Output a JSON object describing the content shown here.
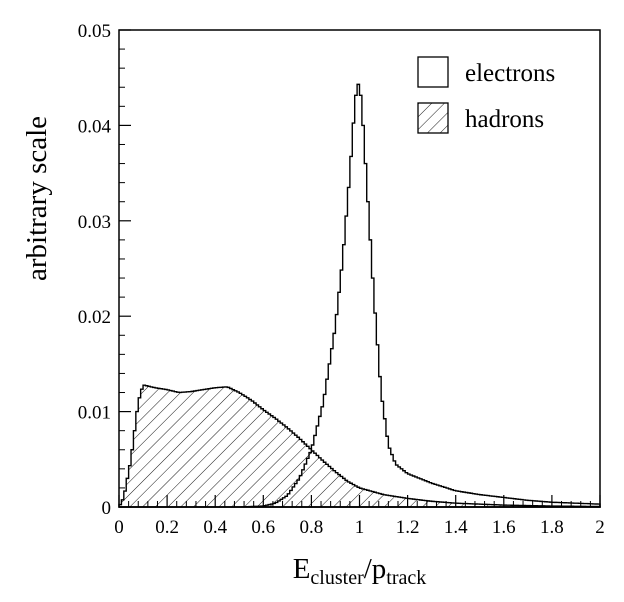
{
  "chart_data": {
    "type": "histogram",
    "xlabel": {
      "main": "E",
      "sub1": "cluster",
      "sep": "/p",
      "sub2": "track"
    },
    "ylabel": "arbitrary scale",
    "xlim": [
      0,
      2
    ],
    "ylim": [
      0,
      0.05
    ],
    "x_ticks": [
      "0",
      "0.2",
      "0.4",
      "0.6",
      "0.8",
      "1",
      "1.2",
      "1.4",
      "1.6",
      "1.8",
      "2"
    ],
    "y_ticks": [
      "0",
      "0.01",
      "0.02",
      "0.03",
      "0.04",
      "0.05"
    ],
    "grid": false,
    "legend": "top-right",
    "series": [
      {
        "name": "electrons",
        "fill": "none",
        "points": [
          [
            0.0,
            0.0
          ],
          [
            0.5,
            0.0
          ],
          [
            0.6,
            0.0001
          ],
          [
            0.65,
            0.0004
          ],
          [
            0.7,
            0.0012
          ],
          [
            0.75,
            0.003
          ],
          [
            0.8,
            0.006
          ],
          [
            0.85,
            0.011
          ],
          [
            0.9,
            0.019
          ],
          [
            0.93,
            0.026
          ],
          [
            0.96,
            0.035
          ],
          [
            0.98,
            0.042
          ],
          [
            0.99,
            0.0443
          ],
          [
            1.0,
            0.0443
          ],
          [
            1.01,
            0.042
          ],
          [
            1.03,
            0.034
          ],
          [
            1.06,
            0.022
          ],
          [
            1.09,
            0.012
          ],
          [
            1.12,
            0.0065
          ],
          [
            1.15,
            0.0045
          ],
          [
            1.2,
            0.0035
          ],
          [
            1.3,
            0.0025
          ],
          [
            1.4,
            0.0017
          ],
          [
            1.5,
            0.0013
          ],
          [
            1.6,
            0.001
          ],
          [
            1.7,
            0.0007
          ],
          [
            1.8,
            0.0005
          ],
          [
            1.9,
            0.0004
          ],
          [
            2.0,
            0.0003
          ]
        ]
      },
      {
        "name": "hadrons",
        "fill": "hatch",
        "points": [
          [
            0.0,
            0.0
          ],
          [
            0.02,
            0.001
          ],
          [
            0.05,
            0.005
          ],
          [
            0.08,
            0.011
          ],
          [
            0.1,
            0.0128
          ],
          [
            0.15,
            0.0125
          ],
          [
            0.2,
            0.0123
          ],
          [
            0.25,
            0.012
          ],
          [
            0.3,
            0.0121
          ],
          [
            0.35,
            0.0123
          ],
          [
            0.4,
            0.0125
          ],
          [
            0.45,
            0.0126
          ],
          [
            0.5,
            0.012
          ],
          [
            0.55,
            0.0112
          ],
          [
            0.6,
            0.0102
          ],
          [
            0.65,
            0.0093
          ],
          [
            0.7,
            0.0083
          ],
          [
            0.75,
            0.0072
          ],
          [
            0.8,
            0.006
          ],
          [
            0.85,
            0.0048
          ],
          [
            0.9,
            0.0037
          ],
          [
            0.95,
            0.0027
          ],
          [
            1.0,
            0.002
          ],
          [
            1.1,
            0.0013
          ],
          [
            1.2,
            0.0009
          ],
          [
            1.3,
            0.0006
          ],
          [
            1.4,
            0.0004
          ],
          [
            1.5,
            0.0003
          ],
          [
            1.6,
            0.0002
          ],
          [
            1.8,
            0.0001
          ],
          [
            2.0,
            5e-05
          ]
        ]
      }
    ]
  }
}
